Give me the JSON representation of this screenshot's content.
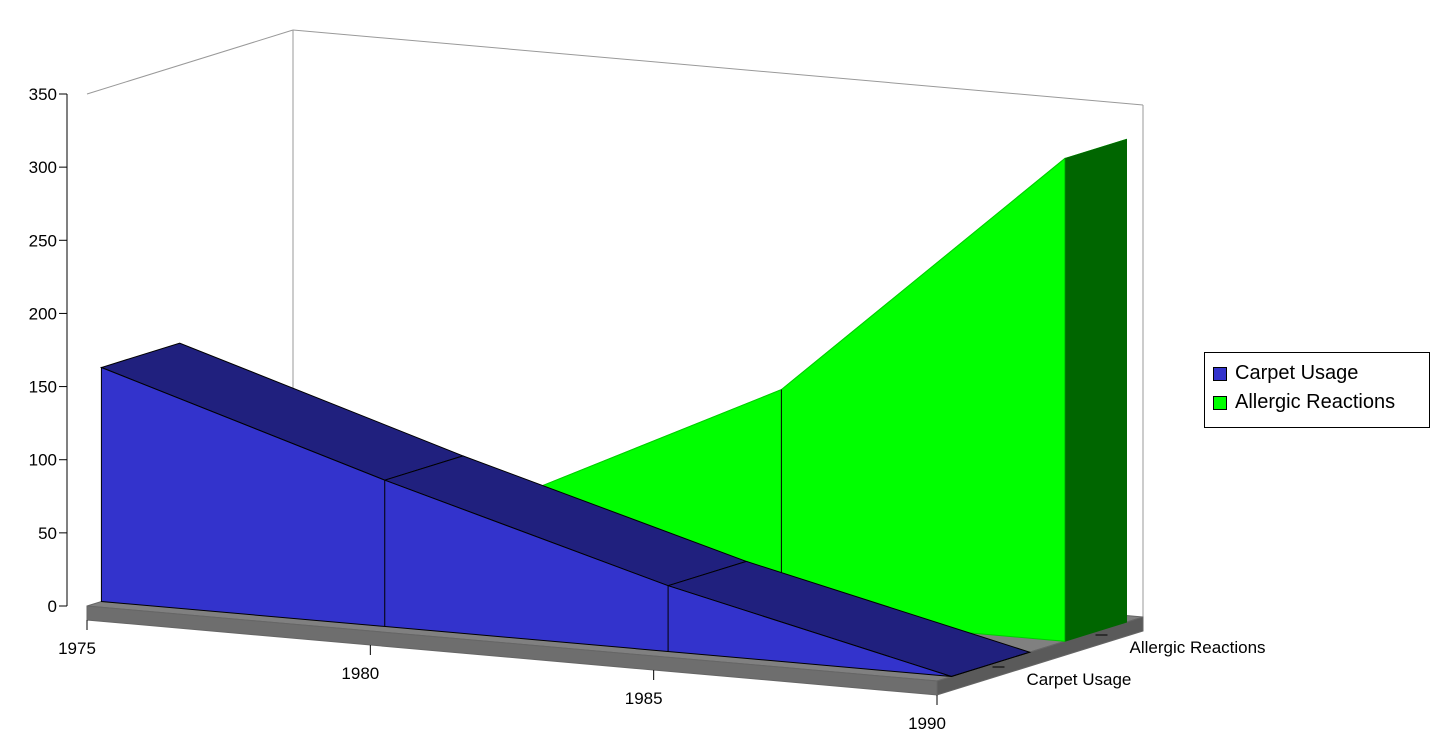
{
  "chart_data": {
    "type": "area",
    "view": "3d",
    "categories": [
      "1975",
      "1980",
      "1985",
      "1990"
    ],
    "x": [
      1975,
      1980,
      1985,
      1990
    ],
    "series": [
      {
        "name": "Carpet Usage",
        "values": [
          160,
          100,
          45,
          0
        ],
        "color": "#3333cc"
      },
      {
        "name": "Allergic Reactions",
        "values": [
          10,
          60,
          155,
          330
        ],
        "color": "#00ff00"
      }
    ],
    "depth_labels": [
      "Carpet Usage",
      "Allergic Reactions"
    ],
    "y_ticks": [
      "0",
      "50",
      "100",
      "150",
      "200",
      "250",
      "300",
      "350"
    ],
    "x_ticks": [
      "1975",
      "1980",
      "1985",
      "1990"
    ],
    "ylim": [
      0,
      350
    ],
    "legend_position": "right",
    "floor_color": "#808080"
  },
  "legend": {
    "items": [
      {
        "label": "Carpet Usage",
        "color": "#3333cc"
      },
      {
        "label": "Allergic Reactions",
        "color": "#00ff00"
      }
    ]
  }
}
